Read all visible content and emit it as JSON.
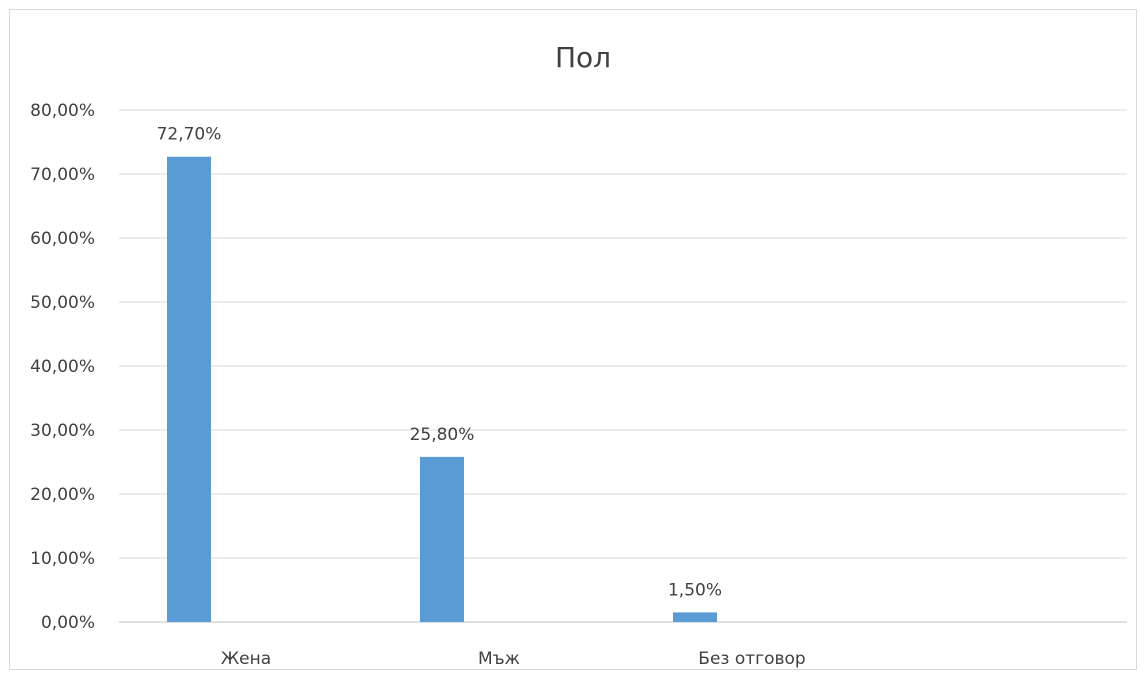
{
  "chart_data": {
    "type": "bar",
    "title": "Пол",
    "categories": [
      "Жена",
      "Мъж",
      "Без отговор"
    ],
    "values": [
      72.7,
      25.8,
      1.5
    ],
    "data_labels": [
      "72,70%",
      "25,80%",
      "1,50%"
    ],
    "ylim": [
      0,
      80
    ],
    "yticks": [
      0,
      10,
      20,
      30,
      40,
      50,
      60,
      70,
      80
    ],
    "ytick_labels": [
      "0,00%",
      "10,00%",
      "20,00%",
      "30,00%",
      "40,00%",
      "50,00%",
      "60,00%",
      "70,00%",
      "80,00%"
    ],
    "xlabel": "",
    "ylabel": "",
    "grid": true,
    "legend": "none",
    "bar_color": "#5b9bd5"
  }
}
